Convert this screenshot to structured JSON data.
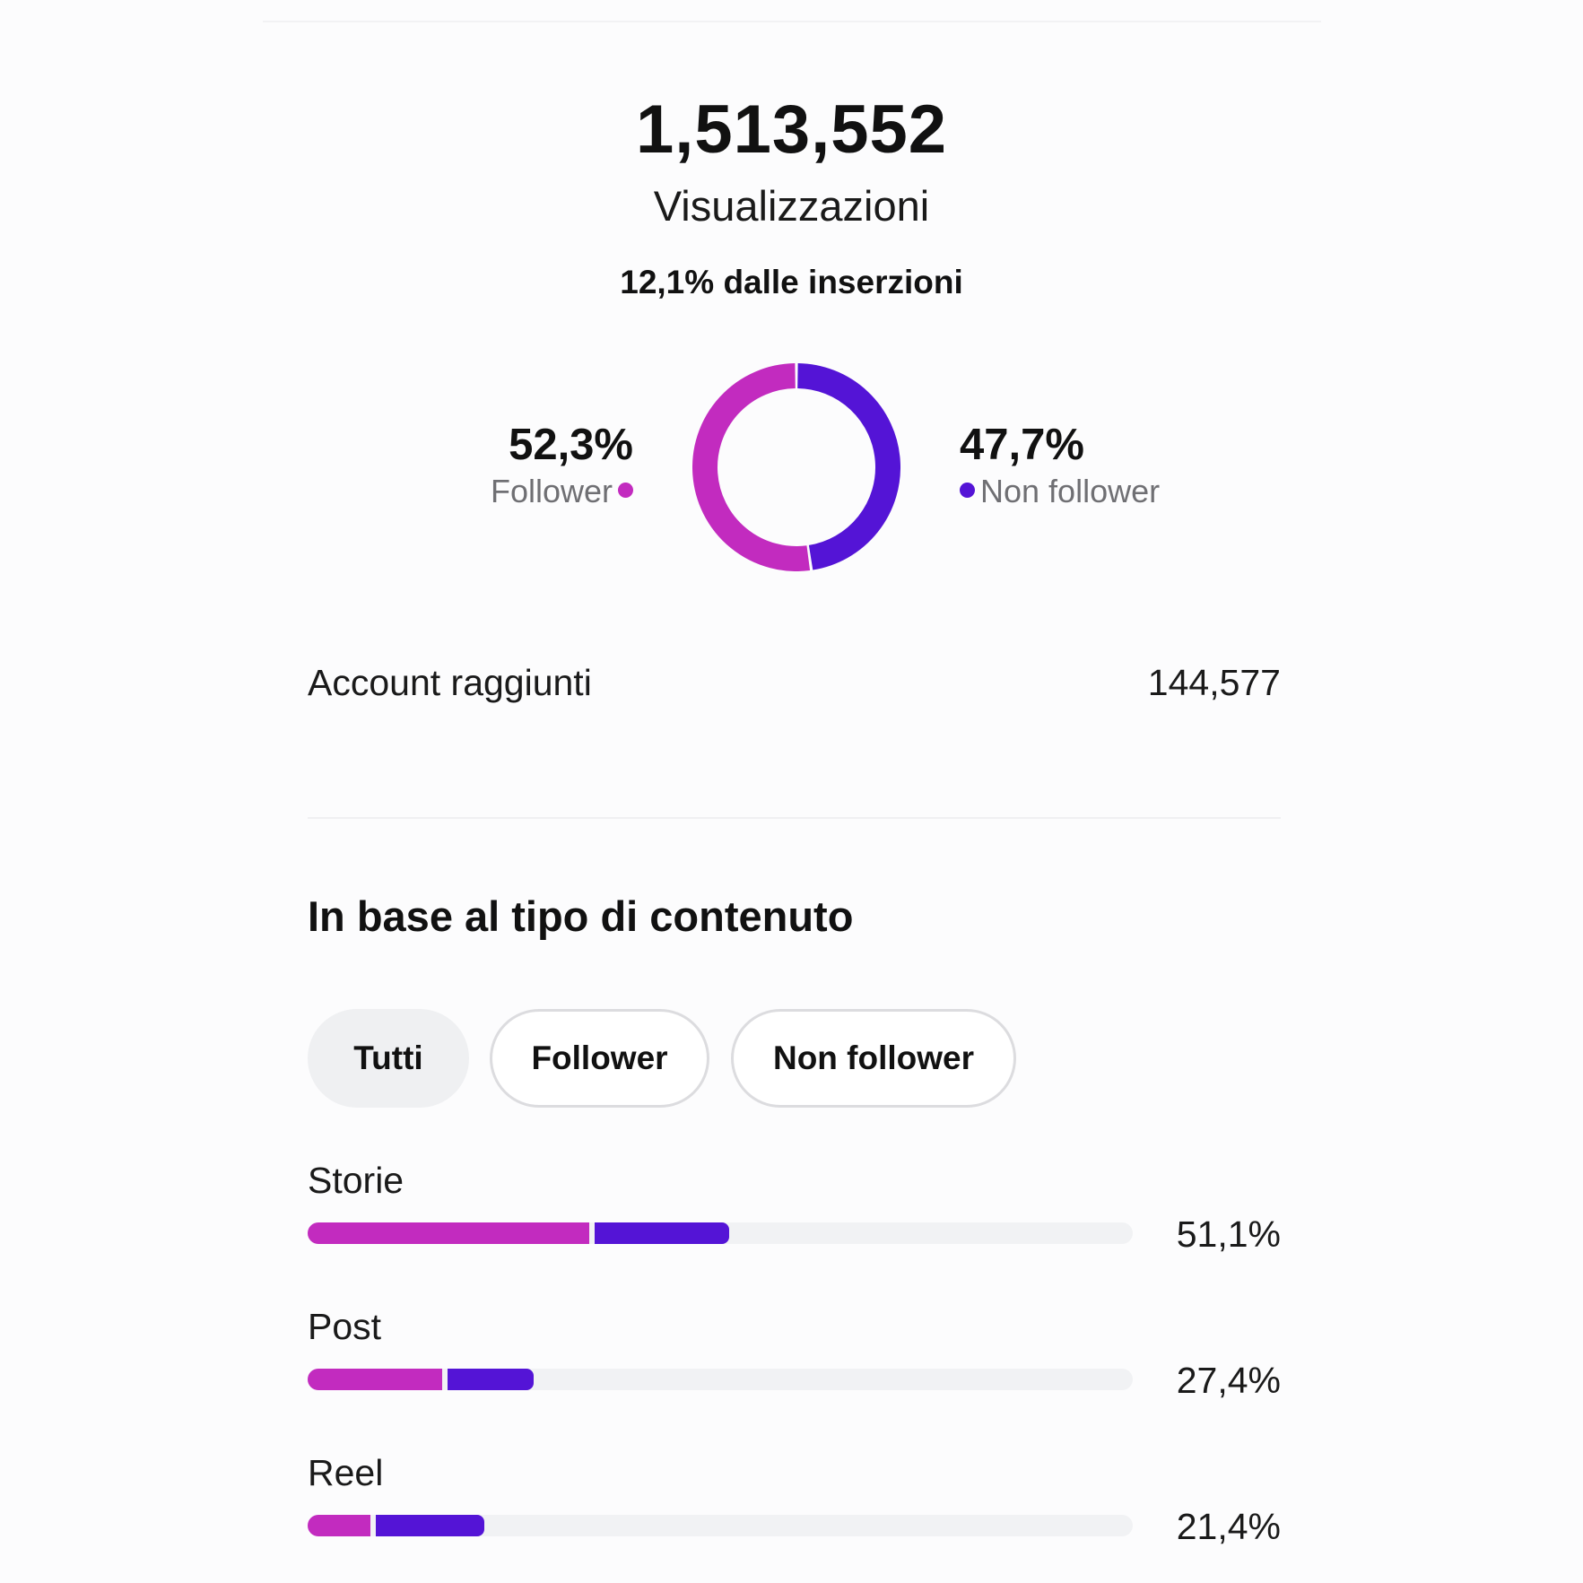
{
  "summary": {
    "total_views": "1,513,552",
    "total_label": "Visualizzazioni",
    "ads_share": "12,1% dalle inserzioni"
  },
  "audience_split": {
    "follower": {
      "percent_label": "52,3%",
      "label": "Follower",
      "value": 52.3,
      "color": "#c22bbf"
    },
    "non_follower": {
      "percent_label": "47,7%",
      "label": "Non follower",
      "value": 47.7,
      "color": "#5414d6"
    }
  },
  "accounts_reached": {
    "label": "Account raggiunti",
    "value": "144,577"
  },
  "content_type_section": {
    "title": "In base al tipo di contenuto",
    "filters": [
      {
        "label": "Tutti",
        "active": true
      },
      {
        "label": "Follower",
        "active": false
      },
      {
        "label": "Non follower",
        "active": false
      }
    ],
    "rows": [
      {
        "label": "Storie",
        "percent_label": "51,1%",
        "follower_share": 34.1,
        "non_follower_share": 17.0
      },
      {
        "label": "Post",
        "percent_label": "27,4%",
        "follower_share": 16.3,
        "non_follower_share": 11.1
      },
      {
        "label": "Reel",
        "percent_label": "21,4%",
        "follower_share": 7.6,
        "non_follower_share": 13.8
      }
    ]
  }
}
